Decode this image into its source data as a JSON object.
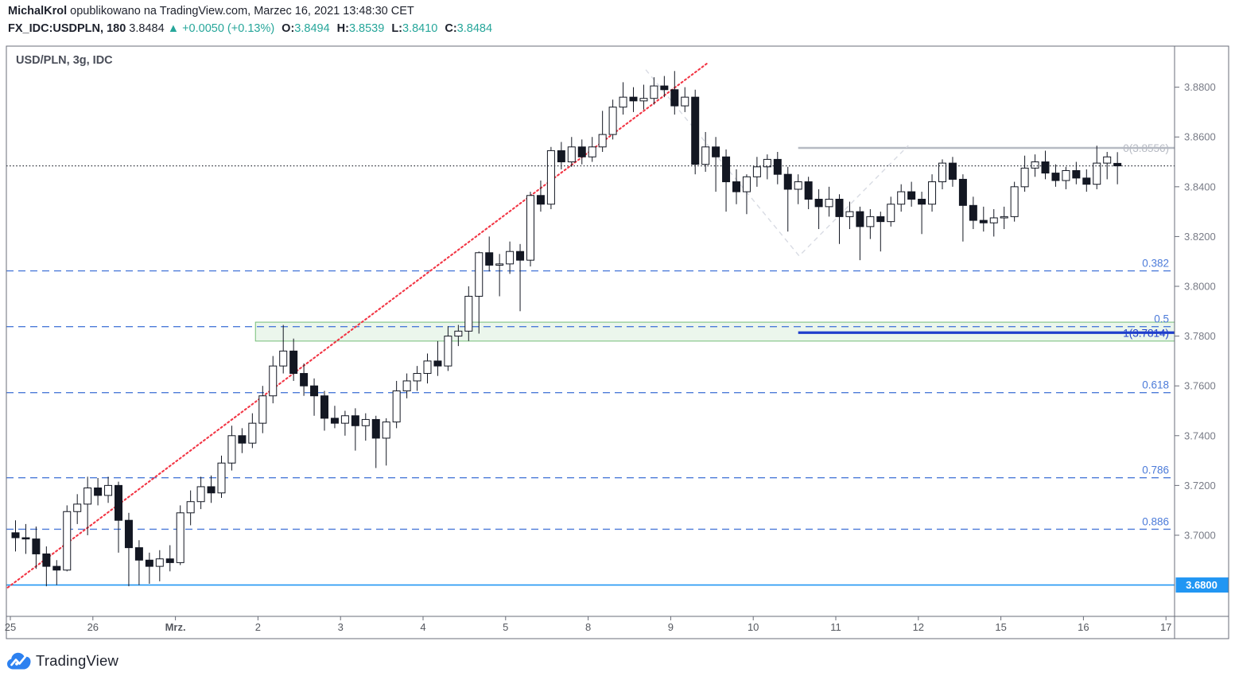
{
  "header": {
    "author": "MichalKrol",
    "publish_text": " opublikowano na TradingView.com, Marzec 16, 2021 13:48:30 CET",
    "symbol": "FX_IDC:USDPLN, 180",
    "last_price": "3.8484",
    "change_arrow": "▲",
    "change_text": "+0.0050 (+0.13%)",
    "ohlc": [
      {
        "label": "O:",
        "value": "3.8494"
      },
      {
        "label": "H:",
        "value": "3.8539"
      },
      {
        "label": "L:",
        "value": "3.8410"
      },
      {
        "label": "C:",
        "value": "3.8484"
      }
    ]
  },
  "chart": {
    "title": "USD/PLN, 3g, IDC"
  },
  "footer": {
    "brand": "TradingView"
  },
  "colors": {
    "up_text": "#26a69a",
    "candle_up_fill": "#ffffff",
    "candle_down_fill": "#131722",
    "candle_stroke": "#131722",
    "fib_dashed": "#4c7bd9",
    "fib_zero": "#b6bac3",
    "fib_one": "#1f3ecc",
    "support_line": "#2196f3",
    "badge_bg": "#2196f3",
    "trendline": "#f23645",
    "zigzag": "#d8dbe3",
    "box_stroke": "#74bd78",
    "box_fill": "rgba(116,189,120,0.14)",
    "axis_text": "#787b86",
    "date_text": "#55585f",
    "frame": "#6a6d78",
    "current_price_line": "#131722"
  },
  "y_axis": {
    "labels": [
      {
        "text": "3.8800",
        "price": 3.88
      },
      {
        "text": "3.8600",
        "price": 3.86
      },
      {
        "text": "3.8400",
        "price": 3.84
      },
      {
        "text": "3.8200",
        "price": 3.82
      },
      {
        "text": "3.8000",
        "price": 3.8
      },
      {
        "text": "3.7800",
        "price": 3.78
      },
      {
        "text": "3.7600",
        "price": 3.76
      },
      {
        "text": "3.7400",
        "price": 3.74
      },
      {
        "text": "3.7200",
        "price": 3.72
      },
      {
        "text": "3.7000",
        "price": 3.7
      }
    ],
    "badge": {
      "text": "3.6800",
      "price": 3.68
    }
  },
  "x_axis": {
    "labels": [
      "25",
      "26",
      "Mrz.",
      "2",
      "3",
      "4",
      "5",
      "8",
      "9",
      "10",
      "11",
      "12",
      "15",
      "16",
      "17"
    ],
    "bold_index": 2
  },
  "chart_data": {
    "type": "candlestick",
    "title": "USD/PLN, 3g, IDC",
    "interval_minutes": 180,
    "bars_per_day": 8,
    "categories": [
      "25",
      "26",
      "Mrz.",
      "2",
      "3",
      "4",
      "5",
      "8",
      "9",
      "10",
      "11",
      "12",
      "15",
      "16",
      "17"
    ],
    "ylim": [
      3.6674,
      3.8965
    ],
    "current_price": 3.8484,
    "candles": [
      [
        3.701,
        3.706,
        3.6935,
        3.699
      ],
      [
        3.699,
        3.7045,
        3.6925,
        3.6985
      ],
      [
        3.6985,
        3.7035,
        3.6865,
        3.6925
      ],
      [
        3.6925,
        3.6955,
        3.6795,
        3.6875
      ],
      [
        3.6875,
        3.69,
        3.68,
        3.686
      ],
      [
        3.686,
        3.712,
        3.6855,
        3.7095
      ],
      [
        3.7095,
        3.7165,
        3.7045,
        3.7125
      ],
      [
        3.7125,
        3.7235,
        3.7,
        3.719
      ],
      [
        3.719,
        3.723,
        3.712,
        3.716
      ],
      [
        3.716,
        3.7235,
        3.713,
        3.72
      ],
      [
        3.72,
        3.7215,
        3.693,
        3.706
      ],
      [
        3.706,
        3.709,
        3.6795,
        3.695
      ],
      [
        3.695,
        3.698,
        3.68,
        3.69
      ],
      [
        3.69,
        3.693,
        3.6805,
        3.6875
      ],
      [
        3.6875,
        3.694,
        3.6815,
        3.6905
      ],
      [
        3.6905,
        3.696,
        3.6855,
        3.689
      ],
      [
        3.689,
        3.712,
        3.688,
        3.709
      ],
      [
        3.709,
        3.718,
        3.704,
        3.7135
      ],
      [
        3.7135,
        3.7235,
        3.7105,
        3.7195
      ],
      [
        3.7195,
        3.724,
        3.713,
        3.717
      ],
      [
        3.717,
        3.732,
        3.715,
        3.729
      ],
      [
        3.729,
        3.744,
        3.726,
        3.74
      ],
      [
        3.74,
        3.743,
        3.733,
        3.737
      ],
      [
        3.737,
        3.749,
        3.735,
        3.745
      ],
      [
        3.745,
        3.76,
        3.741,
        3.756
      ],
      [
        3.756,
        3.772,
        3.753,
        3.768
      ],
      [
        3.768,
        3.7845,
        3.765,
        3.774
      ],
      [
        3.774,
        3.779,
        3.762,
        3.765
      ],
      [
        3.765,
        3.769,
        3.756,
        3.76
      ],
      [
        3.76,
        3.763,
        3.748,
        3.756
      ],
      [
        3.756,
        3.758,
        3.742,
        3.747
      ],
      [
        3.747,
        3.752,
        3.743,
        3.745
      ],
      [
        3.745,
        3.75,
        3.74,
        3.748
      ],
      [
        3.748,
        3.751,
        3.734,
        3.744
      ],
      [
        3.744,
        3.749,
        3.738,
        3.7465
      ],
      [
        3.7465,
        3.748,
        3.727,
        3.739
      ],
      [
        3.739,
        3.747,
        3.728,
        3.7455
      ],
      [
        3.7455,
        3.762,
        3.743,
        3.758
      ],
      [
        3.758,
        3.765,
        3.755,
        3.762
      ],
      [
        3.762,
        3.768,
        3.758,
        3.765
      ],
      [
        3.765,
        3.773,
        3.761,
        3.77
      ],
      [
        3.77,
        3.778,
        3.764,
        3.768
      ],
      [
        3.768,
        3.784,
        3.766,
        3.78
      ],
      [
        3.78,
        3.7845,
        3.776,
        3.782
      ],
      [
        3.782,
        3.8,
        3.778,
        3.796
      ],
      [
        3.796,
        3.814,
        3.781,
        3.8135
      ],
      [
        3.8135,
        3.82,
        3.806,
        3.8085
      ],
      [
        3.8085,
        3.813,
        3.796,
        3.809
      ],
      [
        3.809,
        3.818,
        3.805,
        3.814
      ],
      [
        3.814,
        3.817,
        3.79,
        3.8105
      ],
      [
        3.8105,
        3.838,
        3.808,
        3.8365
      ],
      [
        3.8365,
        3.8425,
        3.83,
        3.833
      ],
      [
        3.833,
        3.856,
        3.831,
        3.8545
      ],
      [
        3.8545,
        3.858,
        3.847,
        3.85
      ],
      [
        3.85,
        3.86,
        3.848,
        3.856
      ],
      [
        3.856,
        3.859,
        3.849,
        3.852
      ],
      [
        3.852,
        3.86,
        3.85,
        3.856
      ],
      [
        3.856,
        3.8705,
        3.854,
        3.861
      ],
      [
        3.861,
        3.875,
        3.859,
        3.872
      ],
      [
        3.872,
        3.882,
        3.869,
        3.876
      ],
      [
        3.876,
        3.88,
        3.87,
        3.8745
      ],
      [
        3.8745,
        3.881,
        3.871,
        3.8755
      ],
      [
        3.8755,
        3.884,
        3.873,
        3.8805
      ],
      [
        3.8805,
        3.8845,
        3.876,
        3.879
      ],
      [
        3.879,
        3.8865,
        3.869,
        3.8725
      ],
      [
        3.8725,
        3.88,
        3.87,
        3.876
      ],
      [
        3.876,
        3.879,
        3.845,
        3.849
      ],
      [
        3.849,
        3.862,
        3.846,
        3.856
      ],
      [
        3.856,
        3.86,
        3.838,
        3.852
      ],
      [
        3.852,
        3.855,
        3.83,
        3.842
      ],
      [
        3.842,
        3.847,
        3.833,
        3.838
      ],
      [
        3.838,
        3.845,
        3.829,
        3.844
      ],
      [
        3.844,
        3.852,
        3.84,
        3.848
      ],
      [
        3.848,
        3.853,
        3.843,
        3.851
      ],
      [
        3.851,
        3.854,
        3.841,
        3.845
      ],
      [
        3.845,
        3.848,
        3.822,
        3.839
      ],
      [
        3.839,
        3.845,
        3.833,
        3.842
      ],
      [
        3.842,
        3.844,
        3.831,
        3.835
      ],
      [
        3.835,
        3.839,
        3.823,
        3.832
      ],
      [
        3.832,
        3.84,
        3.828,
        3.835
      ],
      [
        3.835,
        3.837,
        3.817,
        3.828
      ],
      [
        3.828,
        3.834,
        3.823,
        3.83
      ],
      [
        3.83,
        3.832,
        3.8105,
        3.824
      ],
      [
        3.824,
        3.831,
        3.819,
        3.828
      ],
      [
        3.828,
        3.83,
        3.814,
        3.826
      ],
      [
        3.826,
        3.836,
        3.824,
        3.833
      ],
      [
        3.833,
        3.841,
        3.83,
        3.838
      ],
      [
        3.838,
        3.842,
        3.832,
        3.835
      ],
      [
        3.835,
        3.838,
        3.821,
        3.833
      ],
      [
        3.833,
        3.845,
        3.83,
        3.842
      ],
      [
        3.842,
        3.851,
        3.839,
        3.8495
      ],
      [
        3.8495,
        3.852,
        3.84,
        3.843
      ],
      [
        3.843,
        3.845,
        3.818,
        3.8325
      ],
      [
        3.8325,
        3.836,
        3.823,
        3.8265
      ],
      [
        3.8265,
        3.832,
        3.822,
        3.8255
      ],
      [
        3.8255,
        3.831,
        3.82,
        3.8275
      ],
      [
        3.8275,
        3.832,
        3.823,
        3.828
      ],
      [
        3.828,
        3.842,
        3.826,
        3.84
      ],
      [
        3.84,
        3.8525,
        3.838,
        3.8475
      ],
      [
        3.8475,
        3.853,
        3.844,
        3.85
      ],
      [
        3.85,
        3.8545,
        3.843,
        3.8455
      ],
      [
        3.8455,
        3.849,
        3.84,
        3.8425
      ],
      [
        3.8425,
        3.848,
        3.839,
        3.8465
      ],
      [
        3.8465,
        3.85,
        3.841,
        3.8435
      ],
      [
        3.8435,
        3.847,
        3.838,
        3.841
      ],
      [
        3.841,
        3.8565,
        3.839,
        3.8495
      ],
      [
        3.8495,
        3.854,
        3.843,
        3.852
      ],
      [
        3.8494,
        3.8539,
        3.841,
        3.8484
      ]
    ],
    "drawings": {
      "fib_dashed_levels": [
        {
          "label": "0.382",
          "price": 3.8062
        },
        {
          "label": "0.5",
          "price": 3.7838
        },
        {
          "label": "0.618",
          "price": 3.7573
        },
        {
          "label": "0.786",
          "price": 3.7231
        },
        {
          "label": "0.886",
          "price": 3.7024
        }
      ],
      "fib_right": {
        "from_bar": 76,
        "zero": {
          "label": "0(3.8556)",
          "price": 3.8556
        },
        "one": {
          "label": "1(3.7814)",
          "price": 3.7814
        }
      },
      "support_line": {
        "price": 3.68,
        "badge": "3.6800"
      },
      "trendline": {
        "from": {
          "bar": -0.75,
          "price": 3.679
        },
        "to": {
          "bar": 67.3,
          "price": 3.89
        }
      },
      "zigzag": {
        "points": [
          {
            "bar": 61.2,
            "price": 3.887
          },
          {
            "bar": 76.1,
            "price": 3.8122
          },
          {
            "bar": 86.7,
            "price": 3.8566
          }
        ]
      },
      "highlight_box": {
        "from_bar": 23.3,
        "price_top": 3.7856,
        "price_bottom": 3.778
      }
    }
  }
}
